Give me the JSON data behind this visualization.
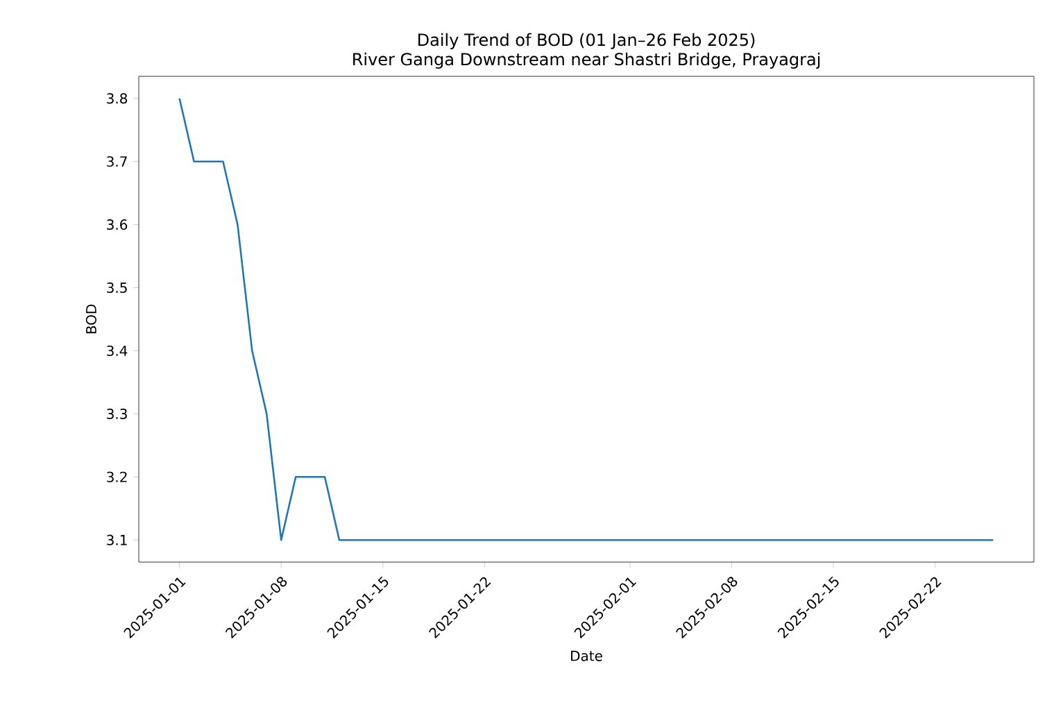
{
  "chart_data": {
    "type": "line",
    "title": "Daily Trend of BOD (01 Jan–26 Feb 2025)",
    "subtitle": "River Ganga Downstream near Shastri Bridge, Prayagraj",
    "xlabel": "Date",
    "ylabel": "BOD",
    "x": [
      "2025-01-01",
      "2025-01-02",
      "2025-01-03",
      "2025-01-04",
      "2025-01-05",
      "2025-01-06",
      "2025-01-07",
      "2025-01-08",
      "2025-01-09",
      "2025-01-10",
      "2025-01-11",
      "2025-01-12",
      "2025-01-20",
      "2025-02-01",
      "2025-02-10",
      "2025-02-20",
      "2025-02-26"
    ],
    "series": [
      {
        "color": "#1f77b4",
        "values": [
          3.8,
          3.7,
          3.7,
          3.7,
          3.6,
          3.4,
          3.3,
          3.1,
          3.2,
          3.2,
          3.2,
          3.1,
          3.1,
          3.1,
          3.1,
          3.1,
          3.1
        ]
      }
    ],
    "xlim": [
      "2024-12-29T04:48",
      "2025-02-28T19:12"
    ],
    "ylim": [
      3.065,
      3.835
    ],
    "xticks": [
      "2025-01-01",
      "2025-01-08",
      "2025-01-15",
      "2025-01-22",
      "2025-02-01",
      "2025-02-08",
      "2025-02-15",
      "2025-02-22"
    ],
    "yticks": [
      3.1,
      3.2,
      3.3,
      3.4,
      3.5,
      3.6,
      3.7,
      3.8
    ],
    "grid": false,
    "marker": "none",
    "line_style": "solid"
  }
}
